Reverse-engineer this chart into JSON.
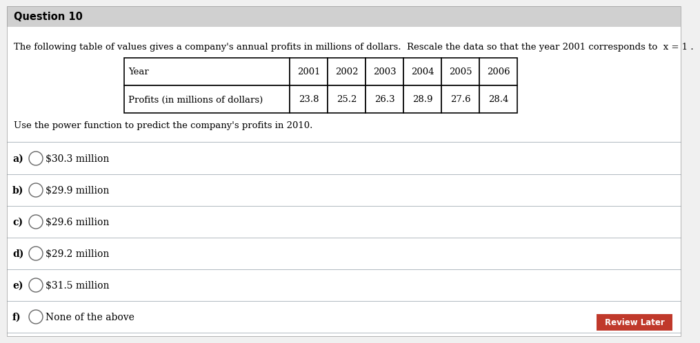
{
  "title": "Question 10",
  "title_bg_color": "#d0d0d0",
  "bg_color": "#f0f0f0",
  "body_bg_color": "#ffffff",
  "intro_text": "The following table of values gives a company's annual profits in millions of dollars.  Rescale the data so that the year 2001 corresponds to  x = 1 .",
  "table_header": [
    "Year",
    "2001",
    "2002",
    "2003",
    "2004",
    "2005",
    "2006"
  ],
  "table_row": [
    "Profits (in millions of dollars)",
    "23.8",
    "25.2",
    "26.3",
    "28.9",
    "27.6",
    "28.4"
  ],
  "question_text": "Use the power function to predict the company's profits in 2010.",
  "choices": [
    {
      "label": "a)",
      "text": "$30.3 million"
    },
    {
      "label": "b)",
      "text": "$29.9 million"
    },
    {
      "label": "c)",
      "text": "$29.6 million"
    },
    {
      "label": "d)",
      "text": "$29.2 million"
    },
    {
      "label": "e)",
      "text": "$31.5 million"
    },
    {
      "label": "f)",
      "text": "None of the above"
    }
  ],
  "review_later_text": "Review Later",
  "review_later_bg": "#c0392b",
  "review_later_text_color": "#ffffff",
  "divider_color": "#b0b8c0",
  "table_border_color": "#000000",
  "font_size_title": 10.5,
  "font_size_body": 9.5,
  "font_size_choices": 10,
  "font_size_table": 9.5
}
